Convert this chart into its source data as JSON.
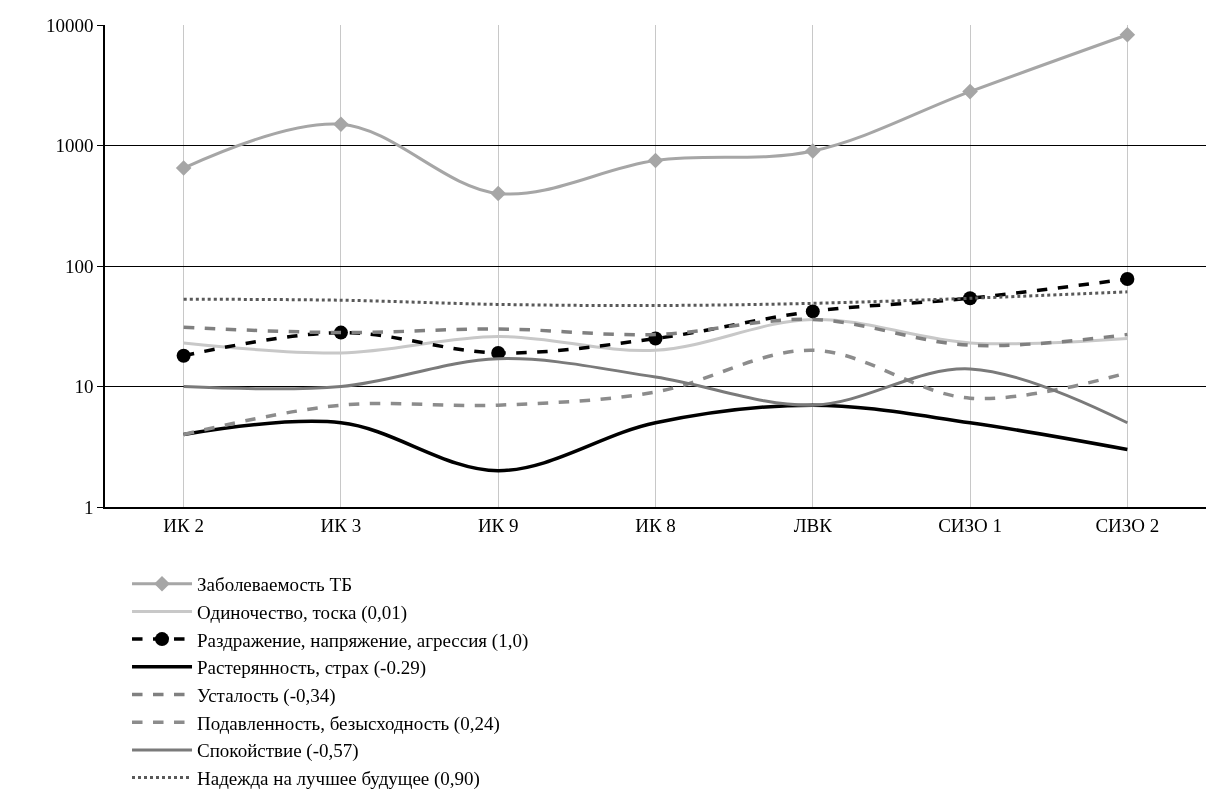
{
  "chart_data": {
    "type": "line",
    "categories": [
      "ИК 2",
      "ИК 3",
      "ИК 9",
      "ИК 8",
      "ЛВК",
      "СИЗО 1",
      "СИЗО 2"
    ],
    "log": "y",
    "ylim": [
      1,
      10000
    ],
    "yticks": [
      1,
      10,
      100,
      1000,
      10000
    ],
    "grid": true,
    "legend": "bottom",
    "series": [
      {
        "name": "Заболеваемость ТБ",
        "color": "#a6a6a6",
        "marker": "diamond",
        "line_style": "solid",
        "values": [
          650,
          1500,
          400,
          750,
          900,
          2800,
          8300
        ]
      },
      {
        "name": "Одиночество, тоска (0,01)",
        "color": "#c8c8c8",
        "marker": "none",
        "line_style": "solid",
        "values": [
          23,
          19,
          26,
          20,
          36,
          23,
          25
        ]
      },
      {
        "name": "Раздражение, напряжение, агрессия (1,0)",
        "color": "#000000",
        "marker": "circle",
        "line_style": "dashed",
        "values": [
          18,
          28,
          19,
          25,
          42,
          54,
          78
        ]
      },
      {
        "name": "Растерянность, страх (-0.29)",
        "color": "#000000",
        "marker": "none",
        "line_style": "solid",
        "values": [
          4,
          5,
          2,
          5,
          7,
          5,
          3
        ]
      },
      {
        "name": "Усталость (-0,34)",
        "color": "#808080",
        "marker": "none",
        "line_style": "dashed",
        "values": [
          31,
          28,
          30,
          27,
          36,
          22,
          27
        ]
      },
      {
        "name": "Подавленность, безысходность (0,24)",
        "color": "#8c8c8c",
        "marker": "none",
        "line_style": "dashed",
        "values": [
          4,
          7,
          7,
          9,
          20,
          8,
          13
        ]
      },
      {
        "name": "Спокойствие (-0,57)",
        "color": "#7a7a7a",
        "marker": "none",
        "line_style": "solid",
        "values": [
          10,
          10,
          17,
          12,
          7,
          14,
          5
        ]
      },
      {
        "name": "Надежда на лучшее будущее (0,90)",
        "color": "#595959",
        "marker": "none",
        "line_style": "dotted",
        "values": [
          53,
          52,
          48,
          47,
          49,
          54,
          61
        ]
      }
    ]
  }
}
